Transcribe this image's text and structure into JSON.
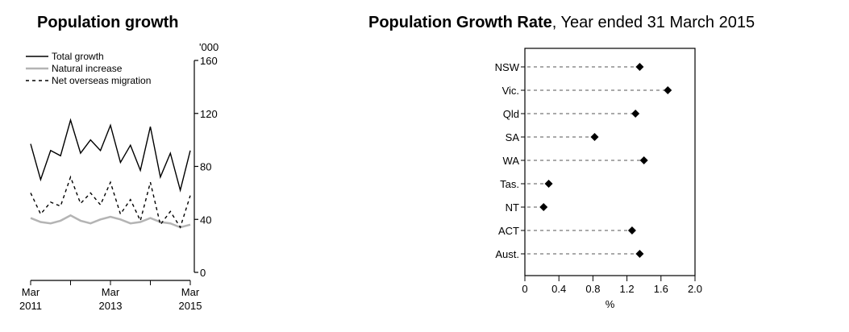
{
  "charts": {
    "growth": {
      "title": "Population growth"
    },
    "rate": {
      "title": "Population Growth Rate",
      "subtitle": ", Year ended 31 March 2015"
    }
  },
  "chart_data": [
    {
      "type": "line",
      "title": "Population growth",
      "ylabel": "'000",
      "ylim": [
        0,
        160
      ],
      "yticks": [
        "0",
        "40",
        "80",
        "120",
        "160"
      ],
      "xticks": [
        "Mar 2011",
        "Mar 2013",
        "Mar 2015"
      ],
      "x": [
        "Mar 2011",
        "Jun 2011",
        "Sep 2011",
        "Dec 2011",
        "Mar 2012",
        "Jun 2012",
        "Sep 2012",
        "Dec 2012",
        "Mar 2013",
        "Jun 2013",
        "Sep 2013",
        "Dec 2013",
        "Mar 2014",
        "Jun 2014",
        "Sep 2014",
        "Dec 2014",
        "Mar 2015"
      ],
      "legend_position": "top-left",
      "series": [
        {
          "name": "Total growth",
          "color": "#000000",
          "style": "solid",
          "values": [
            97,
            70,
            92,
            88,
            115,
            90,
            100,
            92,
            111,
            83,
            96,
            77,
            110,
            72,
            90,
            62,
            92
          ]
        },
        {
          "name": "Natural increase",
          "color": "#b4b4b4",
          "style": "solid",
          "values": [
            41,
            38,
            37,
            39,
            43,
            39,
            37,
            40,
            42,
            40,
            37,
            38,
            41,
            38,
            37,
            34,
            36
          ]
        },
        {
          "name": "Net overseas migration",
          "color": "#000000",
          "style": "dashed",
          "values": [
            60,
            44,
            53,
            50,
            72,
            52,
            60,
            51,
            68,
            44,
            55,
            39,
            68,
            36,
            46,
            34,
            58
          ]
        }
      ]
    },
    {
      "type": "scatter",
      "title": "Population Growth Rate",
      "subtitle": ", Year ended 31 March 2015",
      "xlabel": "%",
      "xlim": [
        0,
        2.0
      ],
      "xticks": [
        "0",
        "0.4",
        "0.8",
        "1.2",
        "1.6",
        "2.0"
      ],
      "categories": [
        "NSW",
        "Vic.",
        "Qld",
        "SA",
        "WA",
        "Tas.",
        "NT",
        "ACT",
        "Aust."
      ],
      "values": [
        1.35,
        1.68,
        1.3,
        0.82,
        1.4,
        0.28,
        0.22,
        1.26,
        1.35
      ]
    }
  ]
}
